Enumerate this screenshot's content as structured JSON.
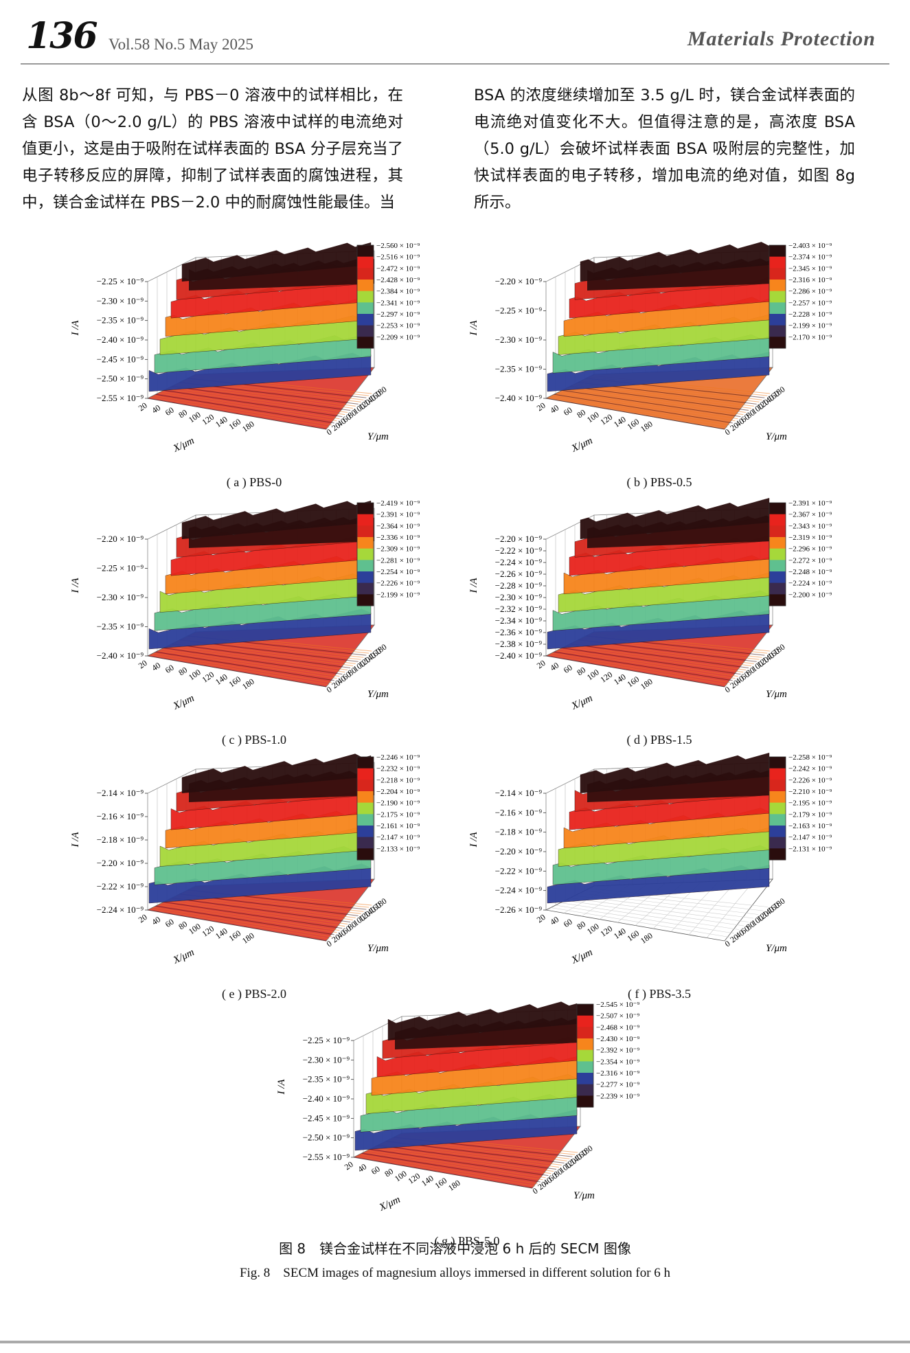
{
  "header": {
    "page_number": "136",
    "issue": "Vol.58  No.5  May 2025",
    "journal": "Materials Protection"
  },
  "body_text": {
    "left": "从图 8b～8f 可知，与 PBS－0 溶液中的试样相比，在含 BSA（0～2.0 g/L）的 PBS 溶液中试样的电流绝对值更小，这是由于吸附在试样表面的 BSA 分子层充当了电子转移反应的屏障，抑制了试样表面的腐蚀进程，其中，镁合金试样在 PBS－2.0 中的耐腐蚀性能最佳。当",
    "right": "BSA 的浓度继续增加至 3.5 g/L 时，镁合金试样表面的电流绝对值变化不大。但值得注意的是，高浓度 BSA（5.0 g/L）会破坏试样表面 BSA 吸附层的完整性，加快试样表面的电子转移，增加电流的绝对值，如图 8g 所示。"
  },
  "figure": {
    "caption_cn": "图 8　镁合金试样在不同溶液中浸泡 6 h 后的 SECM 图像",
    "caption_en": "Fig. 8　SECM images of magnesium alloys immersed in different solution for 6 h",
    "axis_labels": {
      "z": "I /A",
      "x": "X/μm",
      "y": "Y/μm"
    },
    "x_ticks": [
      "20",
      "40",
      "60",
      "80",
      "100",
      "120",
      "140",
      "160",
      "180"
    ],
    "y_ticks": [
      "0",
      "20",
      "40",
      "60",
      "80",
      "100",
      "120",
      "140",
      "160",
      "180"
    ],
    "colormap": [
      "#2a0d0d",
      "#e8231d",
      "#d8261c",
      "#f7851c",
      "#a6d83a",
      "#5fc08f",
      "#2c3f9a",
      "#3a2a4e",
      "#2a0d0d"
    ]
  },
  "chart_data": [
    {
      "type": "surface3d",
      "caption": "( a ) PBS-0",
      "z_ticks": [
        "−2.25 × 10⁻⁹",
        "−2.30 × 10⁻⁹",
        "−2.35 × 10⁻⁹",
        "−2.40 × 10⁻⁹",
        "−2.45 × 10⁻⁹",
        "−2.50 × 10⁻⁹",
        "−2.55 × 10⁻⁹"
      ],
      "colorbar": [
        "−2.560 × 10⁻⁹",
        "−2.516 × 10⁻⁹",
        "−2.472 × 10⁻⁹",
        "−2.428 × 10⁻⁹",
        "−2.384 × 10⁻⁹",
        "−2.341 × 10⁻⁹",
        "−2.297 × 10⁻⁹",
        "−2.253 × 10⁻⁹",
        "−2.209 × 10⁻⁹"
      ]
    },
    {
      "type": "surface3d",
      "caption": "( b ) PBS-0.5",
      "z_ticks": [
        "−2.20 × 10⁻⁹",
        "−2.25 × 10⁻⁹",
        "−2.30 × 10⁻⁹",
        "−2.35 × 10⁻⁹",
        "−2.40 × 10⁻⁹"
      ],
      "colorbar": [
        "−2.403 × 10⁻⁹",
        "−2.374 × 10⁻⁹",
        "−2.345 × 10⁻⁹",
        "−2.316 × 10⁻⁹",
        "−2.286 × 10⁻⁹",
        "−2.257 × 10⁻⁹",
        "−2.228 × 10⁻⁹",
        "−2.199 × 10⁻⁹",
        "−2.170 × 10⁻⁹"
      ]
    },
    {
      "type": "surface3d",
      "caption": "( c ) PBS-1.0",
      "z_ticks": [
        "−2.20 × 10⁻⁹",
        "−2.25 × 10⁻⁹",
        "−2.30 × 10⁻⁹",
        "−2.35 × 10⁻⁹",
        "−2.40 × 10⁻⁹"
      ],
      "colorbar": [
        "−2.419 × 10⁻⁹",
        "−2.391 × 10⁻⁹",
        "−2.364 × 10⁻⁹",
        "−2.336 × 10⁻⁹",
        "−2.309 × 10⁻⁹",
        "−2.281 × 10⁻⁹",
        "−2.254 × 10⁻⁹",
        "−2.226 × 10⁻⁹",
        "−2.199 × 10⁻⁹"
      ]
    },
    {
      "type": "surface3d",
      "caption": "( d ) PBS-1.5",
      "z_ticks": [
        "−2.20 × 10⁻⁹",
        "−2.22 × 10⁻⁹",
        "−2.24 × 10⁻⁹",
        "−2.26 × 10⁻⁹",
        "−2.28 × 10⁻⁹",
        "−2.30 × 10⁻⁹",
        "−2.32 × 10⁻⁹",
        "−2.34 × 10⁻⁹",
        "−2.36 × 10⁻⁹",
        "−2.38 × 10⁻⁹",
        "−2.40 × 10⁻⁹"
      ],
      "colorbar": [
        "−2.391 × 10⁻⁹",
        "−2.367 × 10⁻⁹",
        "−2.343 × 10⁻⁹",
        "−2.319 × 10⁻⁹",
        "−2.296 × 10⁻⁹",
        "−2.272 × 10⁻⁹",
        "−2.248 × 10⁻⁹",
        "−2.224 × 10⁻⁹",
        "−2.200 × 10⁻⁹"
      ]
    },
    {
      "type": "surface3d",
      "caption": "( e ) PBS-2.0",
      "z_ticks": [
        "−2.14 × 10⁻⁹",
        "−2.16 × 10⁻⁹",
        "−2.18 × 10⁻⁹",
        "−2.20 × 10⁻⁹",
        "−2.22 × 10⁻⁹",
        "−2.24 × 10⁻⁹"
      ],
      "colorbar": [
        "−2.246 × 10⁻⁹",
        "−2.232 × 10⁻⁹",
        "−2.218 × 10⁻⁹",
        "−2.204 × 10⁻⁹",
        "−2.190 × 10⁻⁹",
        "−2.175 × 10⁻⁹",
        "−2.161 × 10⁻⁹",
        "−2.147 × 10⁻⁹",
        "−2.133 × 10⁻⁹"
      ]
    },
    {
      "type": "surface3d",
      "caption": "( f ) PBS-3.5",
      "z_ticks": [
        "−2.14 × 10⁻⁹",
        "−2.16 × 10⁻⁹",
        "−2.18 × 10⁻⁹",
        "−2.20 × 10⁻⁹",
        "−2.22 × 10⁻⁹",
        "−2.24 × 10⁻⁹",
        "−2.26 × 10⁻⁹"
      ],
      "colorbar": [
        "−2.258 × 10⁻⁹",
        "−2.242 × 10⁻⁹",
        "−2.226 × 10⁻⁹",
        "−2.210 × 10⁻⁹",
        "−2.195 × 10⁻⁹",
        "−2.179 × 10⁻⁹",
        "−2.163 × 10⁻⁹",
        "−2.147 × 10⁻⁹",
        "−2.131 × 10⁻⁹"
      ]
    },
    {
      "type": "surface3d",
      "caption": "( g ) PBS-5.0",
      "z_ticks": [
        "−2.25 × 10⁻⁹",
        "−2.30 × 10⁻⁹",
        "−2.35 × 10⁻⁹",
        "−2.40 × 10⁻⁹",
        "−2.45 × 10⁻⁹",
        "−2.50 × 10⁻⁹",
        "−2.55 × 10⁻⁹"
      ],
      "colorbar": [
        "−2.545 × 10⁻⁹",
        "−2.507 × 10⁻⁹",
        "−2.468 × 10⁻⁹",
        "−2.430 × 10⁻⁹",
        "−2.392 × 10⁻⁹",
        "−2.354 × 10⁻⁹",
        "−2.316 × 10⁻⁹",
        "−2.277 × 10⁻⁹",
        "−2.239 × 10⁻⁹"
      ]
    }
  ]
}
